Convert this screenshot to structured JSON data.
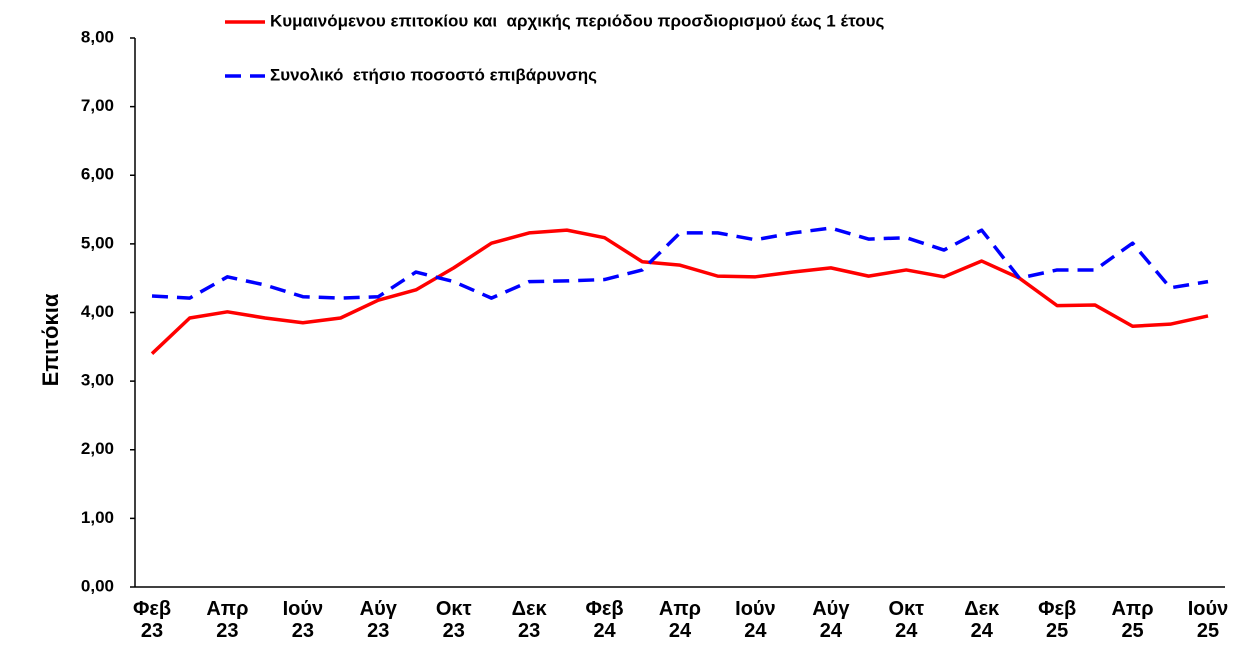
{
  "chart_data": {
    "type": "line",
    "y_label": "Επιτόκια",
    "categories": [
      "Φεβ 23",
      null,
      "Απρ 23",
      null,
      "Ιούν 23",
      null,
      "Αύγ 23",
      null,
      "Οκτ 23",
      null,
      "Δεκ 23",
      null,
      "Φεβ 24",
      null,
      "Απρ 24",
      null,
      "Ιούν 24",
      null,
      "Αύγ 24",
      null,
      "Οκτ 24",
      null,
      "Δεκ 24",
      null,
      "Φεβ 25",
      null,
      "Απρ 25",
      null,
      "Ιούν 25"
    ],
    "series": [
      {
        "name": "Κυμαινόμενου επιτοκίου και  αρχικής περιόδου προσδιορισμού έως 1 έτους",
        "color": "#ff0000",
        "dash": false,
        "values": [
          3.4,
          3.92,
          4.01,
          3.92,
          3.85,
          3.92,
          4.18,
          4.33,
          4.65,
          5.01,
          5.16,
          5.2,
          5.09,
          4.74,
          4.69,
          4.53,
          4.52,
          4.59,
          4.65,
          4.53,
          4.62,
          4.52,
          4.75,
          4.5,
          4.1,
          4.11,
          3.8,
          3.83,
          3.95
        ]
      },
      {
        "name": "Συνολικό  ετήσιο ποσοστό επιβάρυνσης",
        "color": "#0000ff",
        "dash": true,
        "values": [
          4.24,
          4.21,
          4.52,
          4.4,
          4.23,
          4.21,
          4.23,
          4.59,
          4.45,
          4.21,
          4.45,
          4.46,
          4.48,
          4.62,
          5.16,
          5.16,
          5.06,
          5.16,
          5.23,
          5.07,
          5.09,
          4.91,
          5.2,
          4.5,
          4.62,
          4.62,
          5.01,
          4.36,
          4.45
        ]
      }
    ],
    "ylim": [
      0,
      8
    ],
    "yticks": [
      {
        "value": 0,
        "label": "0,00"
      },
      {
        "value": 1,
        "label": "1,00"
      },
      {
        "value": 2,
        "label": "2,00"
      },
      {
        "value": 3,
        "label": "3,00"
      },
      {
        "value": 4,
        "label": "4,00"
      },
      {
        "value": 5,
        "label": "5,00"
      },
      {
        "value": 6,
        "label": "6,00"
      },
      {
        "value": 7,
        "label": "7,00"
      },
      {
        "value": 8,
        "label": "8,00"
      }
    ],
    "grid": false
  }
}
